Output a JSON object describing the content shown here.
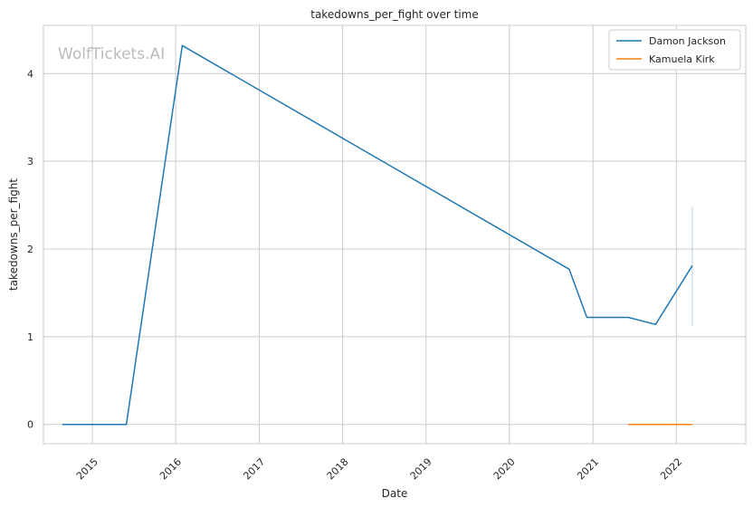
{
  "chart_data": {
    "type": "line",
    "title": "takedowns_per_fight over time",
    "xlabel": "Date",
    "ylabel": "takedowns_per_fight",
    "watermark": "WolfTickets.AI",
    "xlim": [
      "2014-06-01",
      "2022-11-01"
    ],
    "ylim": [
      -0.22,
      4.55
    ],
    "x_ticks": [
      "2015",
      "2016",
      "2017",
      "2018",
      "2019",
      "2020",
      "2021",
      "2022"
    ],
    "y_ticks": [
      "0",
      "1",
      "2",
      "3",
      "4"
    ],
    "grid": true,
    "legend_position": "top-right",
    "series": [
      {
        "name": "Damon Jackson",
        "color": "#1f77b4",
        "points": [
          {
            "x": "2014-08-23",
            "y": 0.0
          },
          {
            "x": "2015-05-30",
            "y": 0.0
          },
          {
            "x": "2016-01-30",
            "y": 4.32
          },
          {
            "x": "2020-09-19",
            "y": 1.77
          },
          {
            "x": "2020-12-05",
            "y": 1.22
          },
          {
            "x": "2021-06-05",
            "y": 1.22
          },
          {
            "x": "2021-10-02",
            "y": 1.14
          },
          {
            "x": "2022-03-12",
            "y": 1.81
          }
        ],
        "error_band": {
          "x": "2022-03-12",
          "low": 1.12,
          "high": 2.48
        }
      },
      {
        "name": "Kamuela Kirk",
        "color": "#ff7f0e",
        "points": [
          {
            "x": "2021-06-05",
            "y": 0.0
          },
          {
            "x": "2021-10-02",
            "y": 0.0
          },
          {
            "x": "2022-03-12",
            "y": 0.0
          }
        ]
      }
    ]
  }
}
